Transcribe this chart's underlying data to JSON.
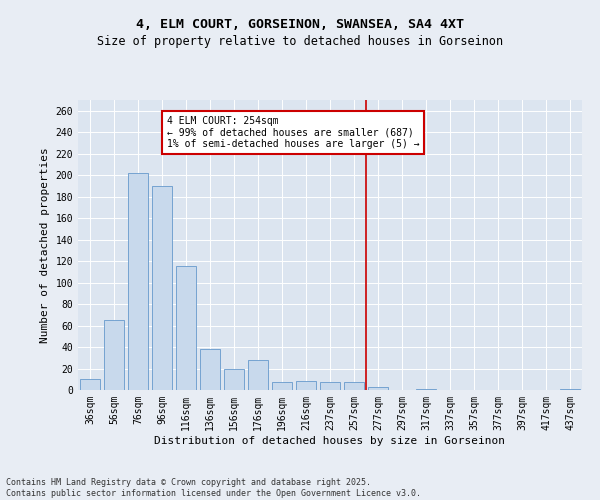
{
  "title": "4, ELM COURT, GORSEINON, SWANSEA, SA4 4XT",
  "subtitle": "Size of property relative to detached houses in Gorseinon",
  "xlabel": "Distribution of detached houses by size in Gorseinon",
  "ylabel": "Number of detached properties",
  "categories": [
    "36sqm",
    "56sqm",
    "76sqm",
    "96sqm",
    "116sqm",
    "136sqm",
    "156sqm",
    "176sqm",
    "196sqm",
    "216sqm",
    "237sqm",
    "257sqm",
    "277sqm",
    "297sqm",
    "317sqm",
    "337sqm",
    "357sqm",
    "377sqm",
    "397sqm",
    "417sqm",
    "437sqm"
  ],
  "values": [
    10,
    65,
    202,
    190,
    115,
    38,
    20,
    28,
    7,
    8,
    7,
    7,
    3,
    0,
    1,
    0,
    0,
    0,
    0,
    0,
    1
  ],
  "bar_color": "#c8d9ec",
  "bar_edge_color": "#6699cc",
  "vline_index": 11,
  "annotation_text": "4 ELM COURT: 254sqm\n← 99% of detached houses are smaller (687)\n1% of semi-detached houses are larger (5) →",
  "annotation_box_color": "#ffffff",
  "annotation_box_edge_color": "#cc0000",
  "vline_color": "#cc0000",
  "bg_color": "#e8edf4",
  "plot_bg_color": "#dce5f0",
  "footer_line1": "Contains HM Land Registry data © Crown copyright and database right 2025.",
  "footer_line2": "Contains public sector information licensed under the Open Government Licence v3.0.",
  "ylim": [
    0,
    270
  ],
  "yticks": [
    0,
    20,
    40,
    60,
    80,
    100,
    120,
    140,
    160,
    180,
    200,
    220,
    240,
    260
  ],
  "title_fontsize": 9.5,
  "subtitle_fontsize": 8.5,
  "axis_label_fontsize": 8,
  "tick_fontsize": 7,
  "annotation_fontsize": 7,
  "footer_fontsize": 6
}
